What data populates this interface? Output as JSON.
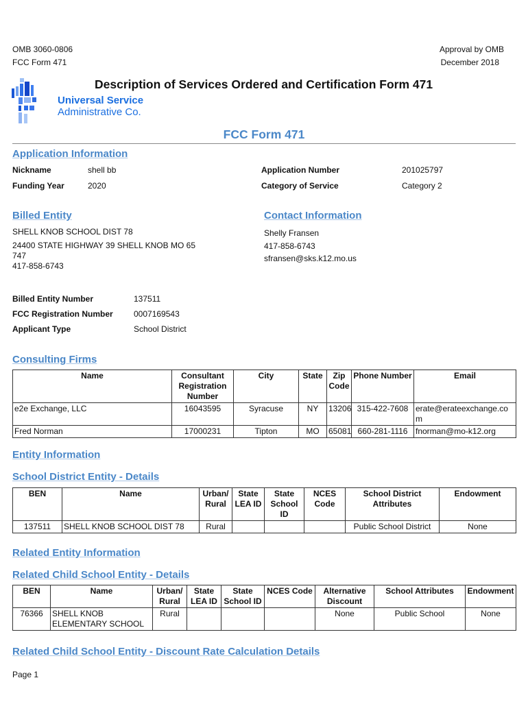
{
  "header": {
    "omb": "OMB 3060-0806",
    "form": "FCC Form 471",
    "approval": "Approval by OMB",
    "date": "December 2018"
  },
  "title": "Description of Services Ordered and Certification Form 471",
  "logo": {
    "line1": "Universal Service",
    "line2": "Administrative Co."
  },
  "subtitle": "FCC Form 471",
  "application": {
    "heading": "Application Information",
    "nickname_label": "Nickname",
    "nickname": "shell bb",
    "funding_year_label": "Funding Year",
    "funding_year": "2020",
    "app_number_label": "Application Number",
    "app_number": "201025797",
    "category_label": "Category of Service",
    "category": "Category 2"
  },
  "billed": {
    "heading": "Billed Entity",
    "name": "SHELL KNOB SCHOOL DIST 78",
    "address1": "24400 STATE HIGHWAY 39  SHELL KNOB MO 65",
    "address2": "747",
    "phone": "417-858-6743",
    "ben_label": "Billed Entity Number",
    "ben": "137511",
    "frn_label": "FCC Registration Number",
    "frn": "0007169543",
    "type_label": "Applicant Type",
    "type": "School District"
  },
  "contact": {
    "heading": "Contact Information",
    "name": "Shelly Fransen",
    "phone": "417-858-6743",
    "email": "sfransen@sks.k12.mo.us"
  },
  "consulting": {
    "heading": "Consulting Firms",
    "columns": [
      "Name",
      "Consultant Registration Number",
      "City",
      "State",
      "Zip Code",
      "Phone Number",
      "Email"
    ],
    "rows": [
      [
        "e2e Exchange, LLC",
        "16043595",
        "Syracuse",
        "NY",
        "13206",
        "315-422-7608",
        "erate@erateexchange.com"
      ],
      [
        "Fred Norman",
        "17000231",
        "Tipton",
        "MO",
        "65081",
        "660-281-1116",
        "fnorman@mo-k12.org"
      ]
    ]
  },
  "entity": {
    "heading": "Entity Information",
    "district_heading": "School District Entity - Details",
    "columns": [
      "BEN",
      "Name",
      "Urban/ Rural",
      "State LEA ID",
      "State School ID",
      "NCES Code",
      "School District Attributes",
      "Endowment"
    ],
    "rows": [
      [
        "137511",
        "SHELL KNOB SCHOOL DIST 78",
        "Rural",
        "",
        "",
        "",
        "Public School District",
        "None"
      ]
    ]
  },
  "related": {
    "heading": "Related Entity Information",
    "child_heading": "Related Child School Entity - Details",
    "columns": [
      "BEN",
      "Name",
      "Urban/ Rural",
      "State LEA ID",
      "State School ID",
      "NCES Code",
      "Alternative Discount",
      "School Attributes",
      "Endowment"
    ],
    "rows": [
      [
        "76366",
        "SHELL KNOB ELEMENTARY SCHOOL",
        "Rural",
        "",
        "",
        "",
        "None",
        "Public School",
        "None"
      ]
    ],
    "discount_heading": "Related Child School Entity - Discount Rate Calculation Details"
  },
  "footer": {
    "page": "Page 1"
  },
  "colors": {
    "heading": "#4a87c8",
    "logo": "#1b6fe0"
  }
}
